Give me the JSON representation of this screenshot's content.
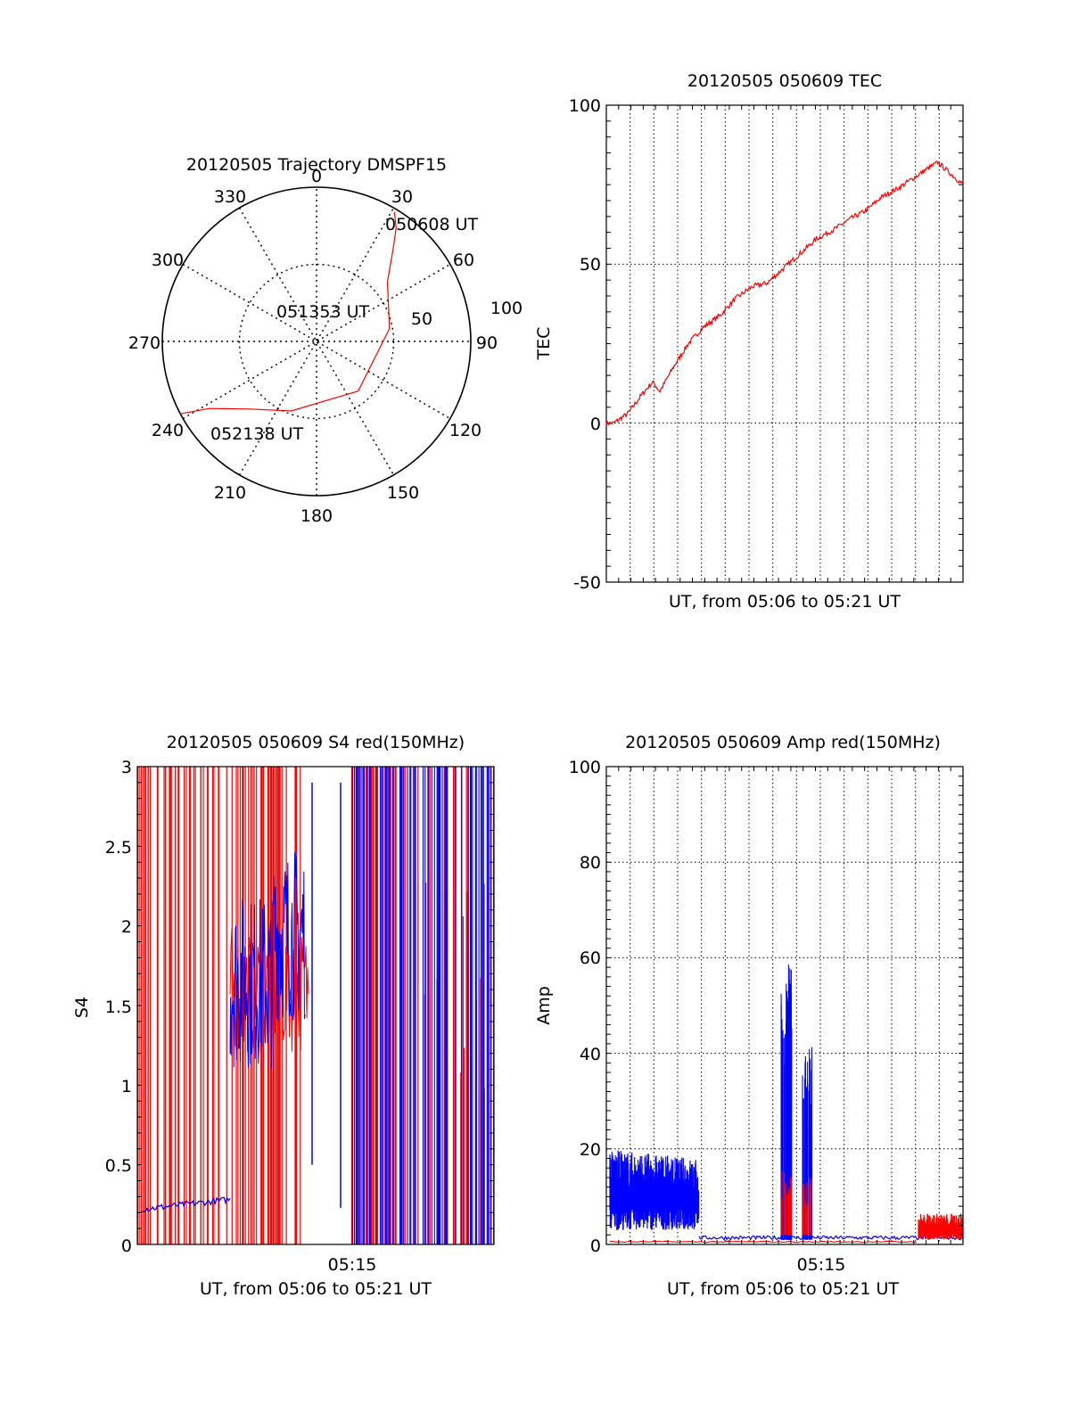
{
  "colors": {
    "red": "#ff0000",
    "blue": "#0000ff",
    "axis": "#000000"
  },
  "chart_data": [
    {
      "type": "polar",
      "title": "20120505 Trajectory DMSPF15",
      "angle_labels": [
        "0",
        "30",
        "60",
        "90",
        "120",
        "150",
        "180",
        "210",
        "240",
        "270",
        "300",
        "330"
      ],
      "radius_labels": [
        "50",
        "100"
      ],
      "r_max": 100,
      "series": [
        {
          "color": "red",
          "points_az_r": [
            [
              31,
              98
            ],
            [
              35,
              90
            ],
            [
              40,
              77
            ],
            [
              50,
              60
            ],
            [
              80,
              48
            ],
            [
              140,
              42
            ],
            [
              200,
              48
            ],
            [
              225,
              62
            ],
            [
              238,
              82
            ],
            [
              242,
              100
            ]
          ]
        }
      ],
      "annotations": [
        "050608 UT",
        "051353 UT",
        "052138 UT"
      ]
    },
    {
      "type": "line",
      "title": "20120505 050609 TEC",
      "xlabel": "UT, from 05:06 to 05:21 UT",
      "ylabel": "TEC",
      "ylim": [
        -50,
        100
      ],
      "yticks": [
        "100",
        "50",
        "0",
        "-50"
      ],
      "grid": true,
      "series": [
        {
          "color": "red",
          "x": [
            0,
            0.02,
            0.06,
            0.1,
            0.13,
            0.15,
            0.19,
            0.23,
            0.27,
            0.32,
            0.36,
            0.41,
            0.45,
            0.5,
            0.55,
            0.59,
            0.64,
            0.68,
            0.73,
            0.77,
            0.82,
            0.86,
            0.9,
            0.93,
            0.95,
            0.98,
            1.0
          ],
          "y": [
            0,
            0,
            3,
            9,
            13,
            10,
            18,
            25,
            30,
            34,
            39,
            43,
            44,
            49,
            54,
            58,
            61,
            64,
            67,
            71,
            74,
            77,
            80,
            82,
            80,
            77,
            75
          ]
        }
      ]
    },
    {
      "type": "line",
      "title": "20120505 050609 S4 red(150MHz)",
      "xlabel": "UT, from 05:06 to 05:21 UT",
      "ylabel": "S4",
      "ylim": [
        0,
        3
      ],
      "yticks": [
        "3",
        "2.5",
        "2",
        "1.5",
        "1",
        "0.5",
        "0"
      ],
      "xticks": [
        "05:15"
      ],
      "series": [
        {
          "name": "red(150MHz)",
          "color": "red"
        },
        {
          "color": "blue"
        }
      ]
    },
    {
      "type": "line",
      "title": "20120505 050609 Amp red(150MHz)",
      "xlabel": "UT, from 05:06 to 05:21 UT",
      "ylabel": "Amp",
      "ylim": [
        0,
        100
      ],
      "yticks": [
        "100",
        "80",
        "60",
        "40",
        "20",
        "0"
      ],
      "xticks": [
        "05:15"
      ],
      "grid": true,
      "series": [
        {
          "name": "red(150MHz)",
          "color": "red"
        },
        {
          "color": "blue"
        }
      ]
    }
  ]
}
